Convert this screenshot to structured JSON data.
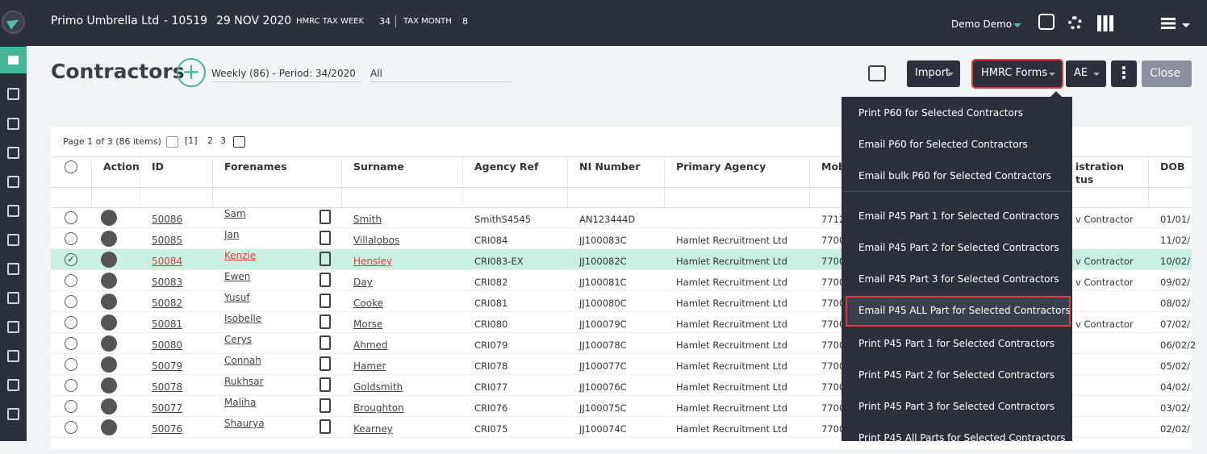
{
  "header": {
    "company": "Primo Umbrella Ltd",
    "ref": "- 10519",
    "date": "29 NOV 2020",
    "tax_week_label": "HMRC TAX WEEK",
    "tax_week": "34",
    "tax_month_label": "TAX MONTH",
    "tax_month": "8",
    "user": "Demo Demo"
  },
  "toolbar": {
    "title": "Contractors",
    "period": "Weekly (86) - Period: 34/2020",
    "filter": "All",
    "buttons": [
      "Import",
      "HMRC Forms",
      "AE",
      "Close"
    ]
  },
  "menu": {
    "items": [
      "Print P60 for Selected Contractors",
      "Email P60 for Selected Contractors",
      "Email bulk P60 for Selected Contractors",
      "Email P45 Part 1 for Selected Contractors",
      "Email P45 Part 2 for Selected Contractors",
      "Email P45 Part 3 for Selected Contractors",
      "Email P45 ALL Part for Selected Contractors",
      "Print P45 Part 1 for Selected Contractors",
      "Print P45 Part 2 for Selected Contractors",
      "Print P45 Part 3 for Selected Contractors",
      "Print P45 All Parts for Selected Contractors"
    ]
  },
  "table": {
    "pagination": "Page 1 of 3 (86 items)",
    "pages": [
      "[1]",
      "2",
      "3"
    ],
    "columns": [
      "Action",
      "ID",
      "Forenames",
      "Surname",
      "Agency Ref",
      "NI Number",
      "Primary Agency",
      "Mob",
      "istration\ntus",
      "DOB"
    ],
    "rows": [
      [
        "50086",
        "Sam",
        "Smith",
        "SmithS4545",
        "AN123444D",
        "",
        "7712",
        "v Contractor",
        "01/01/"
      ],
      [
        "50085",
        "Jan",
        "Villalobos",
        "CRI084",
        "JJ100083C",
        "Hamlet Recruitment Ltd",
        "7700",
        "",
        "11/02/"
      ],
      [
        "50084",
        "Kenzie",
        "Hensley",
        "CRI083-EX",
        "JJ100082C",
        "Hamlet Recruitment Ltd",
        "7700",
        "v Contractor",
        "10/02/"
      ],
      [
        "50083",
        "Ewen",
        "Day",
        "CRI082",
        "JJ100081C",
        "Hamlet Recruitment Ltd",
        "7700",
        "v Contractor",
        "09/02/"
      ],
      [
        "50082",
        "Yusuf",
        "Cooke",
        "CRI081",
        "JJ100080C",
        "Hamlet Recruitment Ltd",
        "7700",
        "",
        "08/02/"
      ],
      [
        "50081",
        "Isobelle",
        "Morse",
        "CRI080",
        "JJ100079C",
        "Hamlet Recruitment Ltd",
        "7700",
        "v Contractor",
        "07/02/"
      ],
      [
        "50080",
        "Cerys",
        "Ahmed",
        "CRI079",
        "JJ100078C",
        "Hamlet Recruitment Ltd",
        "7700",
        "",
        "06/02/2"
      ],
      [
        "50079",
        "Connah",
        "Hamer",
        "CRI078",
        "JJ100077C",
        "Hamlet Recruitment Ltd",
        "7700",
        "",
        "05/02/"
      ],
      [
        "50078",
        "Rukhsar",
        "Goldsmith",
        "CRI077",
        "JJ100076C",
        "Hamlet Recruitment Ltd",
        "7700",
        "",
        "04/02/"
      ],
      [
        "50077",
        "Maliha",
        "Broughton",
        "CRI076",
        "JJ100075C",
        "Hamlet Recruitment Ltd",
        "7700",
        "",
        "03/02/"
      ],
      [
        "50076",
        "Shaurya",
        "Kearney",
        "CRI075",
        "JJ100074C",
        "Hamlet Recruitment Ltd",
        "7700",
        "",
        "02/02/"
      ]
    ],
    "selected_row": 2
  }
}
